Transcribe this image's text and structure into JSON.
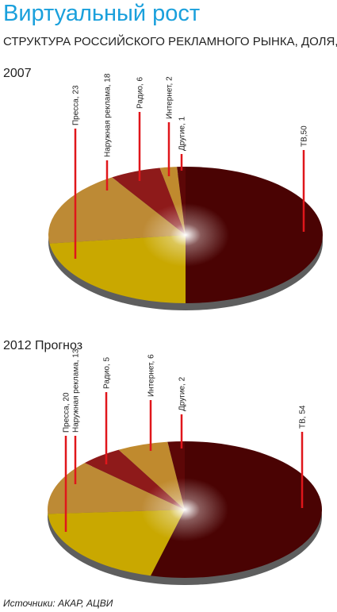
{
  "title": "Виртуальный рост",
  "subtitle": "СТРУКТУРА РОССИЙСКОГО РЕКЛАМНОГО РЫНКА, ДОЛЯ, %",
  "source": "Источники: АКАР, АЦВИ",
  "chart_data": [
    {
      "type": "pie",
      "title": "2007",
      "values": [
        50,
        23,
        18,
        6,
        2,
        1
      ],
      "value_labels": [
        "ТВ,50",
        "Пресса, 23",
        "Наружная реклама, 18",
        "Радио, 6",
        "Интернет, 2",
        "Другие, 1"
      ],
      "colors": [
        "#4a0303",
        "#c9a800",
        "#bd8a35",
        "#8e1a1a",
        "#c08a2e",
        "#5c0707"
      ]
    },
    {
      "type": "pie",
      "title": "2012 Прогноз",
      "values": [
        54,
        20,
        13,
        5,
        6,
        2
      ],
      "value_labels": [
        "ТВ, 54",
        "Пресса, 20",
        "Наружная реклама, 13",
        "Радио, 5",
        "Интернет, 6",
        "Другие, 2"
      ],
      "colors": [
        "#4a0303",
        "#c9a800",
        "#bd8a35",
        "#8e1a1a",
        "#c08a2e",
        "#5c0707"
      ]
    }
  ]
}
